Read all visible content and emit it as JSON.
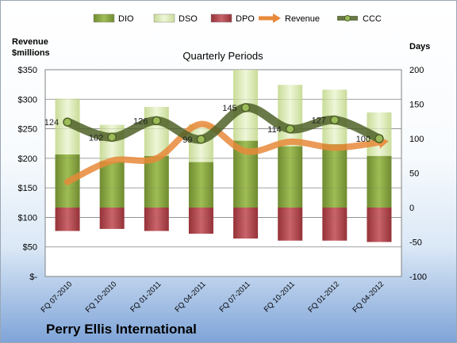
{
  "chart_data": {
    "type": "bar",
    "title": "Quarterly Periods",
    "company": "Perry Ellis International",
    "left_axis_label": [
      "Revenue",
      "$millions"
    ],
    "right_axis_label": "Days",
    "left_ylim": [
      0,
      350
    ],
    "right_ylim": [
      -100,
      200
    ],
    "left_ticks": [
      {
        "value": 0,
        "label": "$-"
      },
      {
        "value": 50,
        "label": "$50"
      },
      {
        "value": 100,
        "label": "$100"
      },
      {
        "value": 150,
        "label": "$150"
      },
      {
        "value": 200,
        "label": "$200"
      },
      {
        "value": 250,
        "label": "$250"
      },
      {
        "value": 300,
        "label": "$300"
      },
      {
        "value": 350,
        "label": "$350"
      }
    ],
    "right_ticks": [
      {
        "value": -100,
        "label": "-100"
      },
      {
        "value": -50,
        "label": "-50"
      },
      {
        "value": 0,
        "label": "0"
      },
      {
        "value": 50,
        "label": "50"
      },
      {
        "value": 100,
        "label": "100"
      },
      {
        "value": 150,
        "label": "150"
      },
      {
        "value": 200,
        "label": "200"
      }
    ],
    "categories": [
      "FQ 07-2010",
      "FQ 10-2010",
      "FQ 01-2011",
      "FQ 04-2011",
      "FQ 07-2011",
      "FQ 10-2011",
      "FQ 01-2012",
      "FQ 04-2012"
    ],
    "legend": [
      "DIO",
      "DSO",
      "DPO",
      "Revenue",
      "CCC"
    ],
    "colors": {
      "DIO": "#7f9e3a",
      "DSO": "#d8e8b0",
      "DPO": "#b3464b",
      "Revenue": "#e8893a",
      "CCC": "#4f6228",
      "grid": "#8c8c8c",
      "plot_bg": "#ffffff"
    },
    "series": [
      {
        "name": "DIO",
        "axis": "right",
        "values": [
          77,
          67,
          75,
          66,
          97,
          89,
          92,
          75
        ]
      },
      {
        "name": "DSO",
        "axis": "right",
        "values": [
          81,
          53,
          71,
          55,
          103,
          89,
          79,
          63
        ]
      },
      {
        "name": "DPO",
        "axis": "right",
        "values": [
          -34,
          -31,
          -34,
          -38,
          -45,
          -48,
          -48,
          -50
        ]
      },
      {
        "name": "Revenue",
        "axis": "left",
        "values": [
          160,
          196,
          200,
          258,
          212,
          228,
          218,
          227
        ]
      },
      {
        "name": "CCC",
        "axis": "right",
        "values": [
          124,
          102,
          126,
          99,
          145,
          114,
          127,
          100
        ]
      }
    ],
    "ccc_labels": [
      "124",
      "102",
      "126",
      "99",
      "145",
      "114",
      "127",
      "100"
    ]
  }
}
